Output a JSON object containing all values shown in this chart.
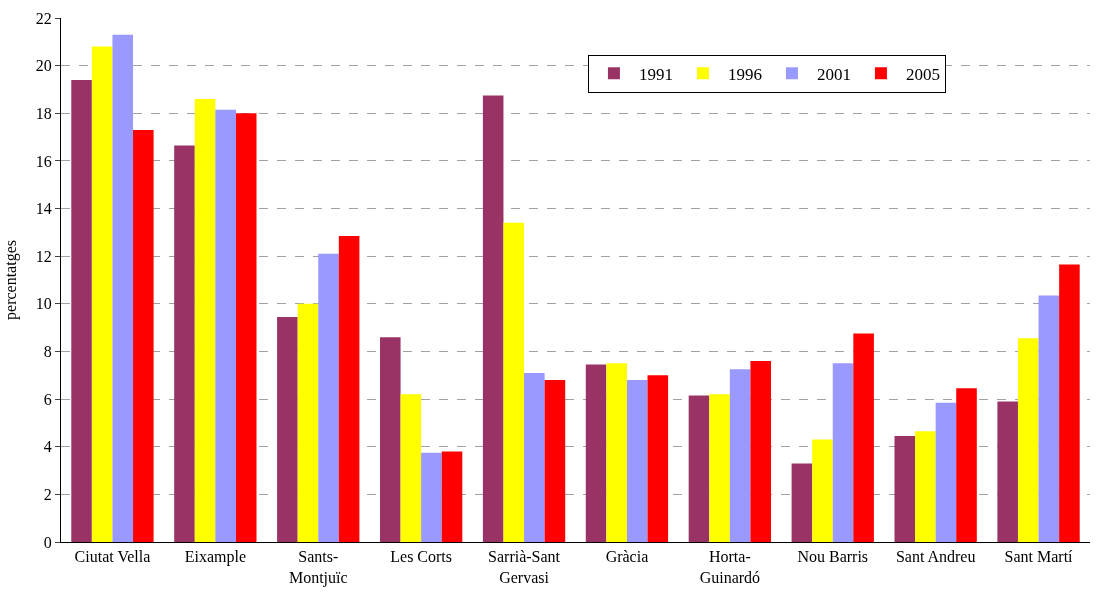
{
  "chart_data": {
    "type": "bar",
    "ylabel": "percentatges",
    "categories": [
      "Ciutat Vella",
      "Eixample",
      "Sants-\nMontjuïc",
      "Les Corts",
      "Sarrià-Sant\nGervasi",
      "Gràcia",
      "Horta-\nGuinardó",
      "Nou Barris",
      "Sant Andreu",
      "Sant Martí"
    ],
    "series": [
      {
        "name": "1991",
        "color": "#993366",
        "values": [
          19.4,
          16.65,
          9.45,
          8.6,
          18.75,
          7.45,
          6.15,
          3.3,
          4.45,
          5.9
        ]
      },
      {
        "name": "1996",
        "color": "#ffff00",
        "values": [
          20.8,
          18.6,
          10.0,
          6.2,
          13.4,
          7.5,
          6.2,
          4.3,
          4.65,
          8.55
        ]
      },
      {
        "name": "2001",
        "color": "#9999ff",
        "values": [
          21.3,
          18.15,
          12.1,
          3.75,
          7.1,
          6.8,
          7.25,
          7.5,
          5.85,
          10.35
        ]
      },
      {
        "name": "2005",
        "color": "#ff0000",
        "values": [
          17.3,
          18.0,
          12.85,
          3.8,
          6.8,
          7.0,
          7.6,
          8.75,
          6.45,
          11.65
        ]
      }
    ],
    "ylim": [
      0,
      22
    ],
    "yticks": [
      0,
      2,
      4,
      6,
      8,
      10,
      12,
      14,
      16,
      18,
      20,
      22
    ],
    "grid": "y",
    "legend": "top right"
  }
}
